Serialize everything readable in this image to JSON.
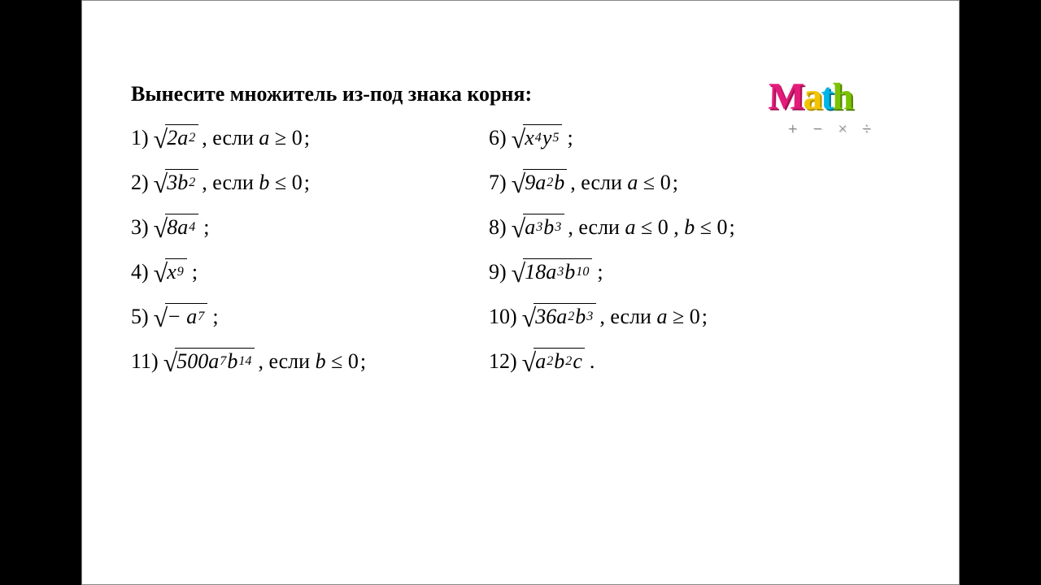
{
  "title": "Вынесите множитель из-под знака корня:",
  "items": {
    "p1": {
      "num": "1)",
      "rad": "2a<sup>2</sup>",
      "cond": ", если <span class=\"var\">a</span> ≥ 0"
    },
    "p2": {
      "num": "2)",
      "rad": "3b<sup>2</sup>",
      "cond": ", если <span class=\"var\">b</span> ≤ 0"
    },
    "p3": {
      "num": "3)",
      "rad": "8a<sup>4</sup>",
      "cond": ""
    },
    "p4": {
      "num": "4)",
      "rad": "x<sup>9</sup>",
      "cond": ""
    },
    "p5": {
      "num": "5)",
      "rad": "−&nbsp;a<sup>7</sup>",
      "cond": ""
    },
    "p6": {
      "num": "6)",
      "rad": "x<sup>4</sup>y<sup>5</sup>",
      "cond": ""
    },
    "p7": {
      "num": "7)",
      "rad": "9a<sup>2</sup>b",
      "cond": ", если <span class=\"var\">a</span> ≤ 0"
    },
    "p8": {
      "num": "8)",
      "rad": "a<sup>3</sup>b<sup>3</sup>",
      "cond": ", если <span class=\"var\">a</span> ≤ 0 , <span class=\"var\">b</span> ≤ 0"
    },
    "p9": {
      "num": "9)",
      "rad": "18a<sup>3</sup>b<sup>10</sup>",
      "cond": ""
    },
    "p10": {
      "num": "10)",
      "rad": "36a<sup>2</sup>b<sup>3</sup>",
      "cond": ", если <span class=\"var\">a</span> ≥ 0"
    },
    "p11": {
      "num": "11)",
      "rad": "500a<sup>7</sup>b<sup>14</sup>",
      "cond": ", если <span class=\"var\">b</span> ≤ 0"
    },
    "p12": {
      "num": "12)",
      "rad": "a<sup>2</sup>b<sup>2</sup>c",
      "cond": ""
    }
  },
  "logo": {
    "letters": [
      "M",
      "a",
      "t",
      "h"
    ],
    "ops": "+ − × ÷"
  },
  "tail_semicolon": ";",
  "tail_period": "."
}
